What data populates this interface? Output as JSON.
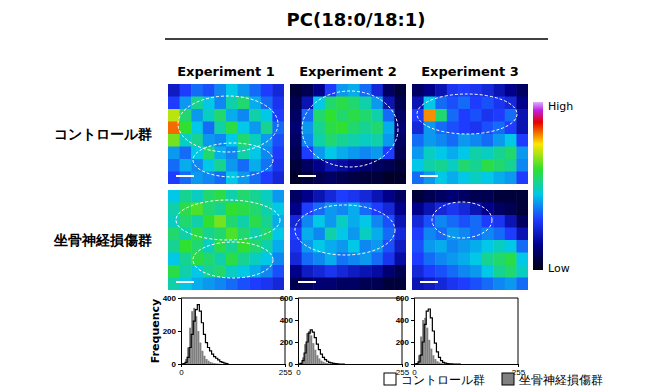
{
  "chart_data": {
    "type": "figure",
    "title": "PC(18:0/18:1)",
    "columns": [
      "Experiment 1",
      "Experiment 2",
      "Experiment 3"
    ],
    "rows": [
      "コントロール群",
      "坐骨神経損傷群"
    ],
    "colorbar": {
      "range": [
        0,
        100
      ],
      "high_label": "High",
      "low_label": "Low"
    },
    "images": [
      [
        [
          [
            22,
            30,
            35,
            32,
            38,
            45,
            40,
            35,
            30,
            25
          ],
          [
            30,
            40,
            52,
            45,
            38,
            50,
            55,
            42,
            35,
            28
          ],
          [
            70,
            55,
            40,
            48,
            55,
            42,
            38,
            50,
            45,
            30
          ],
          [
            82,
            60,
            45,
            35,
            50,
            58,
            45,
            40,
            52,
            35
          ],
          [
            65,
            48,
            52,
            40,
            38,
            45,
            55,
            48,
            40,
            32
          ],
          [
            40,
            35,
            45,
            55,
            42,
            38,
            50,
            45,
            38,
            30
          ],
          [
            35,
            42,
            38,
            45,
            52,
            40,
            35,
            42,
            36,
            28
          ],
          [
            30,
            35,
            40,
            38,
            35,
            45,
            40,
            35,
            30,
            25
          ]
        ],
        [
          [
            5,
            8,
            15,
            30,
            40,
            42,
            35,
            25,
            10,
            5
          ],
          [
            8,
            20,
            45,
            55,
            58,
            55,
            50,
            40,
            20,
            8
          ],
          [
            10,
            35,
            55,
            60,
            55,
            58,
            55,
            50,
            35,
            10
          ],
          [
            12,
            40,
            52,
            58,
            60,
            55,
            52,
            55,
            42,
            12
          ],
          [
            10,
            38,
            50,
            55,
            52,
            50,
            48,
            50,
            40,
            10
          ],
          [
            8,
            30,
            40,
            45,
            42,
            40,
            38,
            40,
            30,
            8
          ],
          [
            5,
            10,
            15,
            20,
            18,
            15,
            12,
            10,
            8,
            5
          ],
          [
            3,
            5,
            8,
            10,
            8,
            6,
            5,
            5,
            3,
            3
          ]
        ],
        [
          [
            10,
            15,
            20,
            28,
            30,
            28,
            25,
            20,
            15,
            10
          ],
          [
            20,
            45,
            35,
            32,
            35,
            30,
            32,
            28,
            25,
            15
          ],
          [
            30,
            80,
            55,
            35,
            30,
            32,
            28,
            30,
            35,
            20
          ],
          [
            25,
            40,
            35,
            32,
            30,
            28,
            32,
            35,
            30,
            20
          ],
          [
            35,
            40,
            38,
            35,
            40,
            38,
            35,
            40,
            45,
            30
          ],
          [
            40,
            48,
            45,
            42,
            45,
            50,
            48,
            52,
            55,
            40
          ],
          [
            45,
            50,
            52,
            48,
            55,
            52,
            58,
            55,
            52,
            38
          ],
          [
            35,
            40,
            45,
            42,
            45,
            48,
            45,
            42,
            40,
            30
          ]
        ]
      ],
      [
        [
          [
            45,
            52,
            48,
            55,
            58,
            50,
            55,
            52,
            48,
            40
          ],
          [
            50,
            58,
            62,
            55,
            52,
            60,
            58,
            55,
            50,
            45
          ],
          [
            48,
            55,
            50,
            60,
            65,
            55,
            50,
            58,
            52,
            42
          ],
          [
            55,
            50,
            58,
            52,
            55,
            62,
            55,
            50,
            55,
            45
          ],
          [
            52,
            60,
            55,
            48,
            58,
            52,
            60,
            55,
            50,
            42
          ],
          [
            45,
            52,
            58,
            55,
            50,
            58,
            52,
            48,
            45,
            38
          ],
          [
            58,
            50,
            45,
            52,
            55,
            48,
            45,
            42,
            38,
            32
          ],
          [
            50,
            45,
            42,
            40,
            38,
            35,
            32,
            30,
            28,
            25
          ]
        ],
        [
          [
            10,
            15,
            20,
            25,
            30,
            28,
            25,
            20,
            15,
            10
          ],
          [
            15,
            30,
            35,
            40,
            38,
            42,
            35,
            30,
            25,
            15
          ],
          [
            25,
            38,
            45,
            40,
            48,
            42,
            45,
            38,
            32,
            20
          ],
          [
            30,
            42,
            38,
            50,
            45,
            40,
            48,
            42,
            35,
            25
          ],
          [
            28,
            40,
            45,
            42,
            40,
            45,
            38,
            40,
            32,
            22
          ],
          [
            25,
            35,
            38,
            42,
            36,
            38,
            40,
            35,
            28,
            18
          ],
          [
            15,
            22,
            25,
            28,
            25,
            22,
            20,
            18,
            12,
            8
          ],
          [
            8,
            10,
            12,
            12,
            10,
            10,
            8,
            8,
            5,
            5
          ]
        ],
        [
          [
            5,
            8,
            10,
            12,
            10,
            8,
            8,
            5,
            5,
            5
          ],
          [
            15,
            20,
            25,
            28,
            25,
            20,
            15,
            10,
            8,
            5
          ],
          [
            25,
            32,
            38,
            35,
            32,
            35,
            30,
            28,
            20,
            10
          ],
          [
            30,
            38,
            35,
            40,
            38,
            35,
            38,
            35,
            30,
            20
          ],
          [
            32,
            40,
            42,
            38,
            40,
            42,
            45,
            48,
            45,
            35
          ],
          [
            30,
            35,
            38,
            40,
            42,
            45,
            52,
            55,
            58,
            45
          ],
          [
            25,
            30,
            32,
            35,
            38,
            40,
            45,
            52,
            55,
            48
          ],
          [
            20,
            22,
            25,
            28,
            30,
            32,
            35,
            38,
            40,
            35
          ]
        ]
      ]
    ],
    "legend": "bottom-right",
    "histograms": [
      {
        "type": "histogram",
        "ylabel": "Frequency",
        "xlim": [
          0,
          255
        ],
        "xticks": [
          0,
          255
        ],
        "ylim": [
          0,
          400
        ],
        "yticks": [
          0,
          200,
          400
        ],
        "bins": [
          0,
          5,
          10,
          15,
          20,
          25,
          30,
          35,
          40,
          45,
          50,
          55,
          60,
          65,
          70,
          75,
          80,
          85,
          90,
          95,
          100,
          105,
          110,
          115,
          120
        ],
        "series": [
          {
            "name": "コントロール群",
            "type": "line",
            "color": "#000000",
            "values": [
              0,
              2,
              10,
              40,
              100,
              180,
              260,
              330,
              360,
              320,
              250,
              180,
              130,
              100,
              80,
              60,
              45,
              35,
              25,
              15,
              10,
              5,
              2,
              0
            ]
          },
          {
            "name": "坐骨神経損傷群",
            "type": "bar",
            "color": "#808080",
            "values": [
              0,
              5,
              30,
              100,
              220,
              320,
              340,
              290,
              200,
              130,
              80,
              50,
              30,
              20,
              12,
              8,
              5,
              3,
              2,
              1,
              0,
              0,
              0,
              0
            ]
          }
        ]
      },
      {
        "type": "histogram",
        "xlim": [
          0,
          255
        ],
        "xticks": [
          0,
          255
        ],
        "ylim": [
          0,
          600
        ],
        "yticks": [
          0,
          200,
          400,
          600
        ],
        "bins": [
          0,
          5,
          10,
          15,
          20,
          25,
          30,
          35,
          40,
          45,
          50,
          55,
          60,
          65,
          70,
          75,
          80,
          85,
          90,
          95,
          100,
          105,
          110,
          115,
          120
        ],
        "series": [
          {
            "name": "コントロール群",
            "type": "line",
            "color": "#000000",
            "values": [
              0,
              5,
              30,
              100,
              200,
              280,
              310,
              290,
              240,
              180,
              130,
              90,
              60,
              40,
              25,
              15,
              10,
              6,
              3,
              1,
              0,
              0,
              0,
              0
            ]
          },
          {
            "name": "坐骨神経損傷群",
            "type": "bar",
            "color": "#808080",
            "values": [
              0,
              10,
              60,
              180,
              280,
              300,
              260,
              190,
              130,
              80,
              50,
              30,
              20,
              12,
              8,
              5,
              3,
              2,
              1,
              0,
              0,
              0,
              0,
              0
            ]
          }
        ]
      },
      {
        "type": "histogram",
        "xlim": [
          0,
          255
        ],
        "xticks": [
          0,
          255
        ],
        "ylim": [
          0,
          600
        ],
        "yticks": [
          0,
          200,
          400,
          600
        ],
        "bins": [
          0,
          5,
          10,
          15,
          20,
          25,
          30,
          35,
          40,
          45,
          50,
          55,
          60,
          65,
          70,
          75,
          80,
          85,
          90,
          95,
          100,
          105,
          110,
          115,
          120
        ],
        "series": [
          {
            "name": "コントロール群",
            "type": "line",
            "color": "#000000",
            "values": [
              0,
              3,
              20,
              80,
              200,
              360,
              480,
              500,
              420,
              300,
              190,
              110,
              60,
              30,
              15,
              8,
              4,
              2,
              1,
              0,
              0,
              0,
              0,
              0
            ]
          },
          {
            "name": "坐骨神経損傷群",
            "type": "bar",
            "color": "#808080",
            "values": [
              0,
              10,
              80,
              250,
              400,
              420,
              330,
              220,
              140,
              80,
              45,
              25,
              15,
              8,
              5,
              3,
              2,
              1,
              0,
              0,
              0,
              0,
              0,
              0
            ]
          }
        ]
      }
    ]
  }
}
